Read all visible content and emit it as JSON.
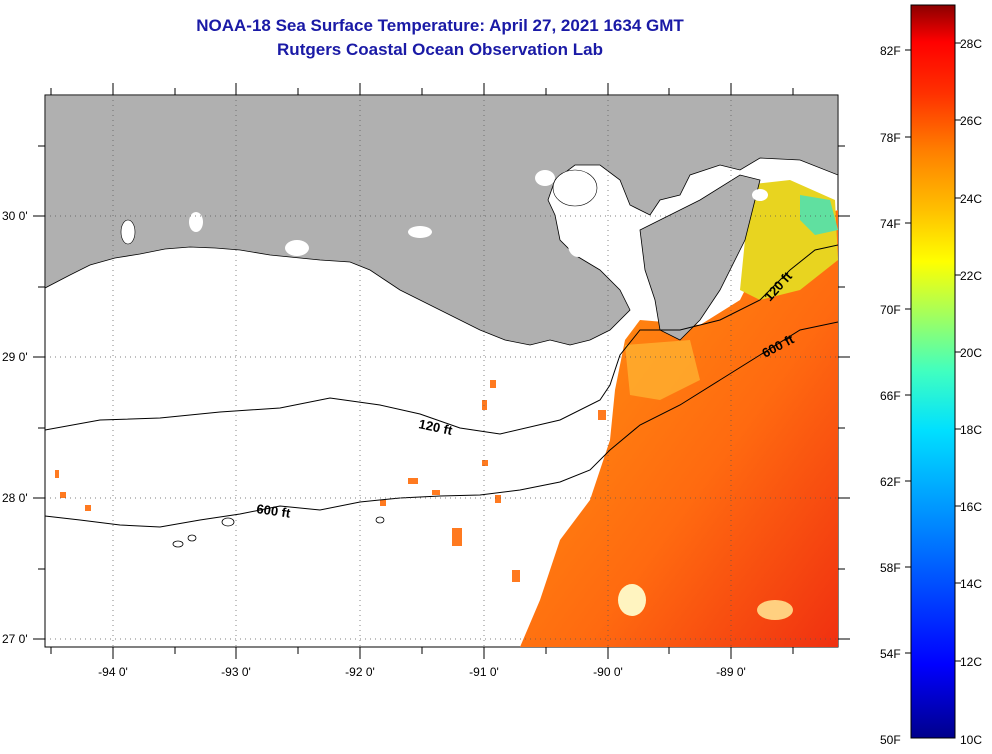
{
  "title": "NOAA-18 Sea Surface Temperature:  April 27, 2021 1634 GMT",
  "subtitle": "Rutgers Coastal Ocean Observation Lab",
  "map": {
    "lon_range": [
      -94.5,
      -88.3
    ],
    "lat_range": [
      26.95,
      29.9
    ],
    "x_ticks": [
      "-94 0'",
      "-93 0'",
      "-92 0'",
      "-91 0'",
      "-90 0'",
      "-89 0'"
    ],
    "y_ticks": [
      "30 0'",
      "29 0'",
      "28 0'",
      "27 0'"
    ],
    "land_color": "#b0b0b0",
    "contours": [
      {
        "label": "120 ft",
        "label_positions": [
          "west",
          "east"
        ]
      },
      {
        "label": "600 ft",
        "label_positions": [
          "west",
          "east"
        ]
      }
    ]
  },
  "colorbar": {
    "fahrenheit_labels": [
      "82F",
      "78F",
      "74F",
      "70F",
      "66F",
      "62F",
      "58F",
      "54F",
      "50F"
    ],
    "celsius_labels": [
      "28C",
      "26C",
      "24C",
      "22C",
      "20C",
      "18C",
      "16C",
      "14C",
      "12C",
      "10C"
    ],
    "range_c": [
      10,
      29
    ],
    "colors": [
      "#00008b",
      "#0000ff",
      "#0080ff",
      "#00e0ff",
      "#40ffc0",
      "#c0ff40",
      "#ffff00",
      "#ffc000",
      "#ff8000",
      "#ff3000",
      "#ff0000",
      "#8b0000"
    ]
  }
}
